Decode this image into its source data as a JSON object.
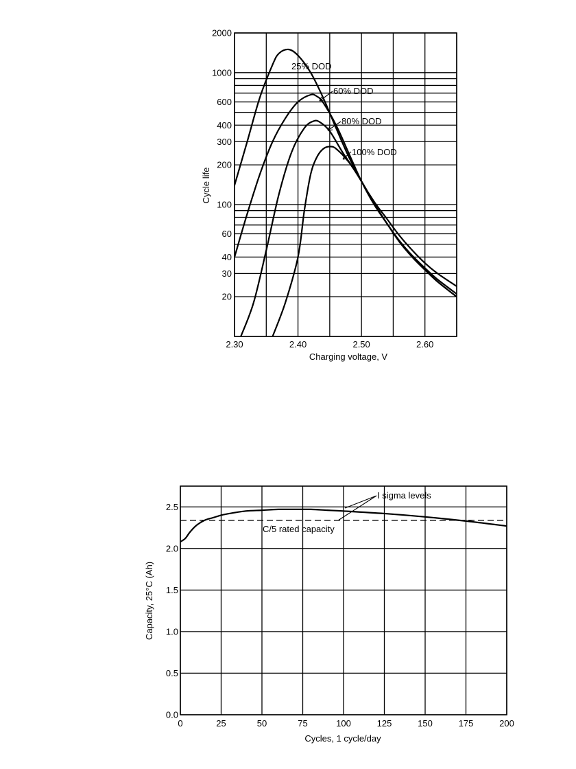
{
  "chart_data": [
    {
      "type": "line",
      "title": "",
      "xlabel": "Charging voltage, V",
      "ylabel": "Cycle life",
      "xlim": [
        2.3,
        2.65
      ],
      "ylim": [
        10,
        2000
      ],
      "y_scale": "log",
      "grid": true,
      "x_ticks": [
        2.3,
        2.35,
        2.4,
        2.45,
        2.5,
        2.55,
        2.6,
        2.65
      ],
      "x_tick_labels": [
        "2.30",
        "",
        "2.40",
        "",
        "2.50",
        "",
        "2.60",
        ""
      ],
      "y_ticks": [
        10,
        20,
        30,
        40,
        50,
        60,
        70,
        80,
        90,
        100,
        200,
        300,
        400,
        500,
        600,
        700,
        800,
        900,
        1000,
        2000
      ],
      "y_tick_labels": [
        "",
        "20",
        "30",
        "40",
        "",
        "60",
        "",
        "",
        "",
        "100",
        "200",
        "300",
        "400",
        "",
        "600",
        "",
        "",
        "",
        "1000",
        "2000"
      ],
      "series": [
        {
          "name": "25% DOD",
          "x": [
            2.3,
            2.32,
            2.34,
            2.36,
            2.37,
            2.385,
            2.4,
            2.42,
            2.44,
            2.46,
            2.48,
            2.5,
            2.52,
            2.54,
            2.56,
            2.58,
            2.6,
            2.62,
            2.65
          ],
          "y": [
            140,
            300,
            650,
            1150,
            1400,
            1500,
            1350,
            1000,
            640,
            380,
            230,
            150,
            105,
            78,
            58,
            45,
            36,
            30,
            24
          ]
        },
        {
          "name": "60% DOD",
          "x": [
            2.3,
            2.32,
            2.34,
            2.36,
            2.38,
            2.4,
            2.42,
            2.43,
            2.44,
            2.46,
            2.48,
            2.5,
            2.52,
            2.54,
            2.56,
            2.58,
            2.6,
            2.62,
            2.65
          ],
          "y": [
            40,
            85,
            170,
            300,
            450,
            600,
            680,
            660,
            590,
            400,
            245,
            150,
            100,
            72,
            53,
            41,
            33,
            27,
            21
          ]
        },
        {
          "name": "80% DOD",
          "x": [
            2.31,
            2.33,
            2.35,
            2.37,
            2.39,
            2.41,
            2.425,
            2.435,
            2.45,
            2.47,
            2.49,
            2.5,
            2.52,
            2.54,
            2.56,
            2.58,
            2.6,
            2.62,
            2.65
          ],
          "y": [
            10,
            18,
            45,
            120,
            250,
            380,
            430,
            420,
            360,
            250,
            180,
            150,
            102,
            72,
            52,
            40,
            32,
            26,
            20
          ]
        },
        {
          "name": "100% DOD",
          "x": [
            2.36,
            2.38,
            2.4,
            2.41,
            2.42,
            2.43,
            2.44,
            2.45,
            2.46,
            2.48,
            2.5,
            2.52,
            2.54,
            2.56,
            2.58,
            2.6,
            2.62,
            2.65
          ],
          "y": [
            10,
            18,
            40,
            90,
            170,
            230,
            265,
            275,
            265,
            210,
            150,
            102,
            72,
            52,
            40,
            32,
            26,
            20
          ]
        }
      ],
      "annotations": [
        "25% DOD",
        "60% DOD",
        "80% DOD",
        "100% DOD"
      ]
    },
    {
      "type": "line",
      "title": "",
      "xlabel": "Cycles, 1 cycle/day",
      "ylabel": "Capacity, 25°C (Ah)",
      "xlim": [
        0,
        200
      ],
      "ylim": [
        0.0,
        2.75
      ],
      "grid": true,
      "x_ticks": [
        0,
        25,
        50,
        75,
        100,
        125,
        150,
        175,
        200
      ],
      "x_tick_labels": [
        "0",
        "25",
        "50",
        "75",
        "100",
        "125",
        "150",
        "175",
        "200"
      ],
      "y_ticks": [
        0.0,
        0.5,
        1.0,
        1.5,
        2.0,
        2.5
      ],
      "y_tick_labels": [
        "0.0",
        "0.5",
        "1.0",
        "1.5",
        "2.0",
        "2.5"
      ],
      "series": [
        {
          "x": [
            0,
            3,
            6,
            10,
            15,
            20,
            25,
            30,
            40,
            50,
            60,
            70,
            80,
            90,
            100,
            125,
            150,
            175,
            200
          ],
          "y": [
            2.08,
            2.12,
            2.2,
            2.28,
            2.34,
            2.37,
            2.4,
            2.42,
            2.45,
            2.46,
            2.47,
            2.47,
            2.47,
            2.46,
            2.45,
            2.42,
            2.38,
            2.33,
            2.27
          ]
        },
        {
          "x": [
            0,
            200
          ],
          "y": [
            2.34,
            2.34
          ],
          "style": "dashed"
        }
      ],
      "annotations": [
        "I sigma levels",
        "C/5 rated capacity"
      ]
    }
  ]
}
